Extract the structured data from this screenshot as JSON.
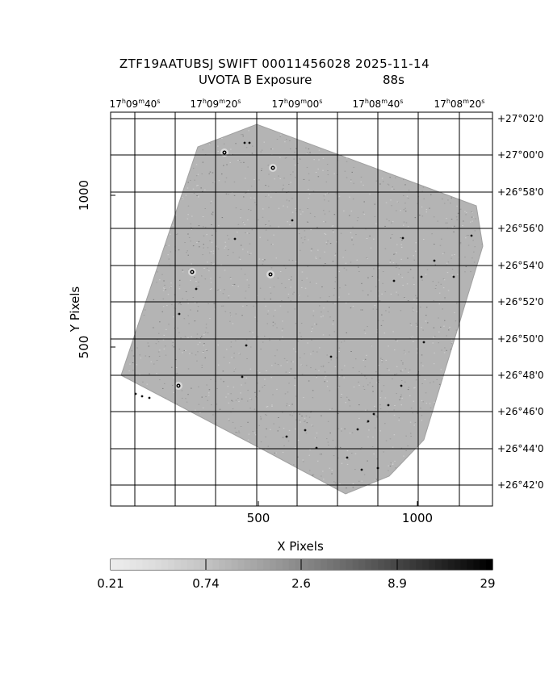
{
  "title": {
    "line1": "ZTF19AATUBSJ SWIFT 00011456028 2025-11-14",
    "line2_label": "UVOTA B Exposure",
    "line2_value": "88s"
  },
  "ra_labels": [
    {
      "h": "17",
      "m": "09",
      "s": "40"
    },
    {
      "h": "17",
      "m": "09",
      "s": "20"
    },
    {
      "h": "17",
      "m": "09",
      "s": "00"
    },
    {
      "h": "17",
      "m": "08",
      "s": "40"
    },
    {
      "h": "17",
      "m": "08",
      "s": "20"
    }
  ],
  "dec_labels": [
    "+27°02'0",
    "+27°00'0",
    "+26°58'0",
    "+26°56'0",
    "+26°54'0",
    "+26°52'0",
    "+26°50'0",
    "+26°48'0",
    "+26°46'0",
    "+26°44'0",
    "+26°42'0"
  ],
  "x_axis": {
    "label": "X Pixels",
    "ticks": [
      "500",
      "1000"
    ],
    "tick_values": [
      500,
      1000
    ]
  },
  "y_axis": {
    "label": "Y Pixels",
    "ticks": [
      "500",
      "1000"
    ],
    "tick_values": [
      500,
      1000
    ]
  },
  "colorbar": {
    "ticks": [
      "0.21",
      "0.74",
      "2.6",
      "8.9",
      "29"
    ]
  },
  "colors": {
    "exposure_fill": "#b4b4b4",
    "grid": "#000000",
    "background": "#ffffff"
  }
}
